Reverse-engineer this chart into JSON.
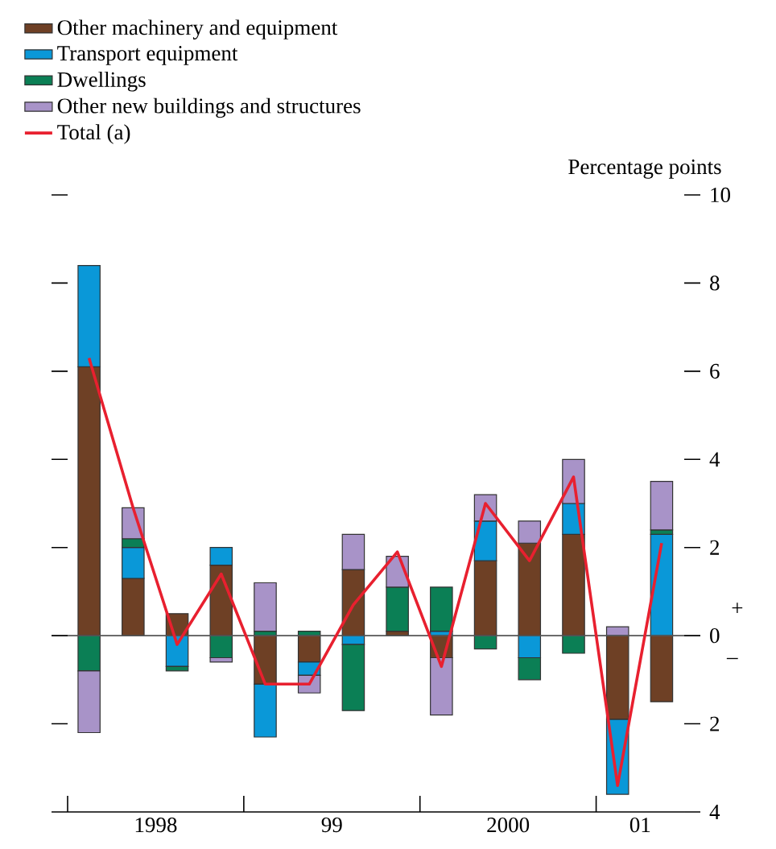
{
  "chart_data": {
    "type": "bar",
    "stacked": true,
    "x": [
      "1998-02-15",
      "1998-05-15",
      "1998-08-15",
      "1998-11-15",
      "1999-02-15",
      "1999-05-15",
      "1999-08-15",
      "1999-11-15",
      "2000-02-15",
      "2000-05-15",
      "2000-08-15",
      "2000-11-15",
      "2001-02-15",
      "2001-05-15"
    ],
    "xlim": [
      "1998-01-01",
      "2001-07-01"
    ],
    "xticks": [
      {
        "value": "1998-01-01",
        "label": null
      },
      {
        "value": "1998-07-01",
        "label": "1998"
      },
      {
        "value": "1999-01-01",
        "label": null
      },
      {
        "value": "1999-07-01",
        "label": "99"
      },
      {
        "value": "2000-01-01",
        "label": null
      },
      {
        "value": "2000-07-01",
        "label": "2000"
      },
      {
        "value": "2001-01-01",
        "label": null
      },
      {
        "value": "2001-04-01",
        "label": "01"
      }
    ],
    "ylabel": "Percentage points",
    "ylim": [
      -4,
      10
    ],
    "yticks": [
      {
        "value": -4,
        "label": "4"
      },
      {
        "value": -2,
        "label": "2"
      },
      0,
      2,
      4,
      6,
      8,
      10
    ],
    "series": [
      {
        "name": "Other machinery and equipment",
        "color": "#6e4025",
        "values": [
          6.1,
          1.3,
          0.5,
          1.6,
          -1.1,
          -0.6,
          1.5,
          0.1,
          -0.5,
          1.7,
          2.1,
          2.3,
          -1.9,
          -1.5
        ]
      },
      {
        "name": "Transport equipment",
        "color": "#0a98d8",
        "values": [
          2.3,
          0.7,
          -0.7,
          0.4,
          -1.2,
          -0.3,
          -0.2,
          null,
          0.1,
          0.9,
          -0.5,
          0.7,
          -1.7,
          2.3
        ]
      },
      {
        "name": "Dwellings",
        "color": "#0b7f55",
        "values": [
          -0.8,
          0.2,
          -0.1,
          -0.5,
          0.1,
          0.1,
          -1.5,
          1.0,
          1.0,
          -0.3,
          -0.5,
          -0.4,
          null,
          0.1
        ]
      },
      {
        "name": "Other new buildings and structures",
        "color": "#a893c8",
        "values": [
          -1.4,
          0.7,
          null,
          -0.1,
          1.1,
          -0.4,
          0.8,
          0.7,
          -1.3,
          0.6,
          0.5,
          1.0,
          0.2,
          1.1
        ]
      },
      {
        "name": "Total (a)",
        "type": "line",
        "color": "#e8202f",
        "values": [
          6.3,
          2.9,
          -0.2,
          1.4,
          -1.1,
          -1.1,
          0.7,
          1.9,
          -0.7,
          3.0,
          1.7,
          3.6,
          -3.4,
          2.1
        ]
      }
    ],
    "ref_lines": [
      {
        "axis": "y",
        "value": 0,
        "color": "#555555"
      }
    ],
    "annotations": [
      "+",
      "–"
    ],
    "legend": "top left"
  }
}
